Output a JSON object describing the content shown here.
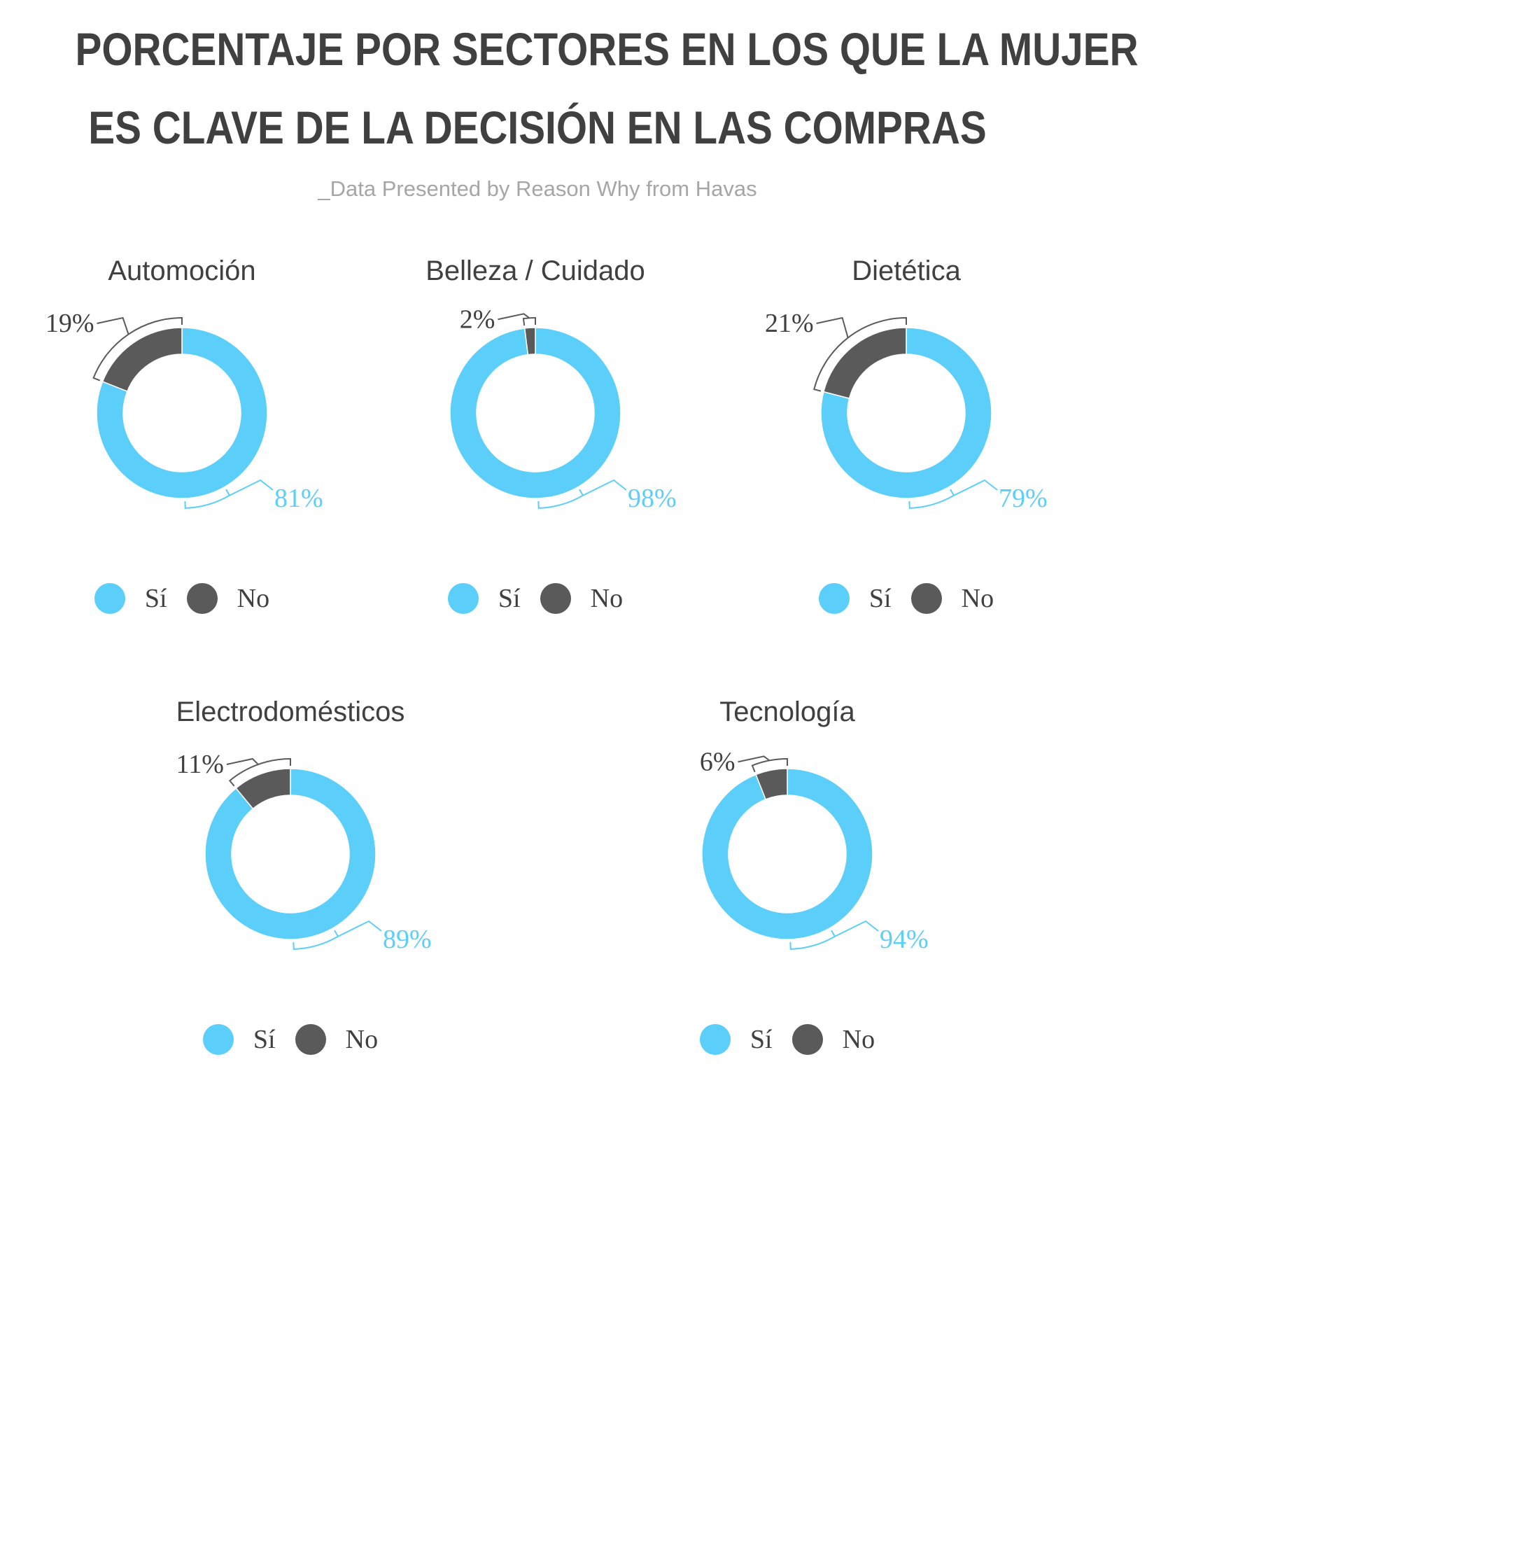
{
  "title": {
    "line1": "PORCENTAJE POR SECTORES EN LOS QUE LA MUJER",
    "line2": "ES CLAVE DE LA DECISIÓN EN LAS COMPRAS"
  },
  "subtitle": "_Data Presented by Reason Why from Havas",
  "colors": {
    "si": "#5bcefa",
    "no": "#5a5a5a",
    "text": "#404040"
  },
  "legend": {
    "si": "Sí",
    "no": "No"
  },
  "chart_data": [
    {
      "type": "pie",
      "title": "Automoción",
      "categories": [
        "Sí",
        "No"
      ],
      "values": [
        81,
        19
      ],
      "labels": [
        "81%",
        "19%"
      ]
    },
    {
      "type": "pie",
      "title": "Belleza / Cuidado",
      "categories": [
        "Sí",
        "No"
      ],
      "values": [
        98,
        2
      ],
      "labels": [
        "98%",
        "2%"
      ]
    },
    {
      "type": "pie",
      "title": "Dietética",
      "categories": [
        "Sí",
        "No"
      ],
      "values": [
        79,
        21
      ],
      "labels": [
        "79%",
        "21%"
      ]
    },
    {
      "type": "pie",
      "title": "Electrodomésticos",
      "categories": [
        "Sí",
        "No"
      ],
      "values": [
        89,
        11
      ],
      "labels": [
        "89%",
        "11%"
      ]
    },
    {
      "type": "pie",
      "title": "Tecnología",
      "categories": [
        "Sí",
        "No"
      ],
      "values": [
        94,
        6
      ],
      "labels": [
        "94%",
        "6%"
      ]
    }
  ]
}
